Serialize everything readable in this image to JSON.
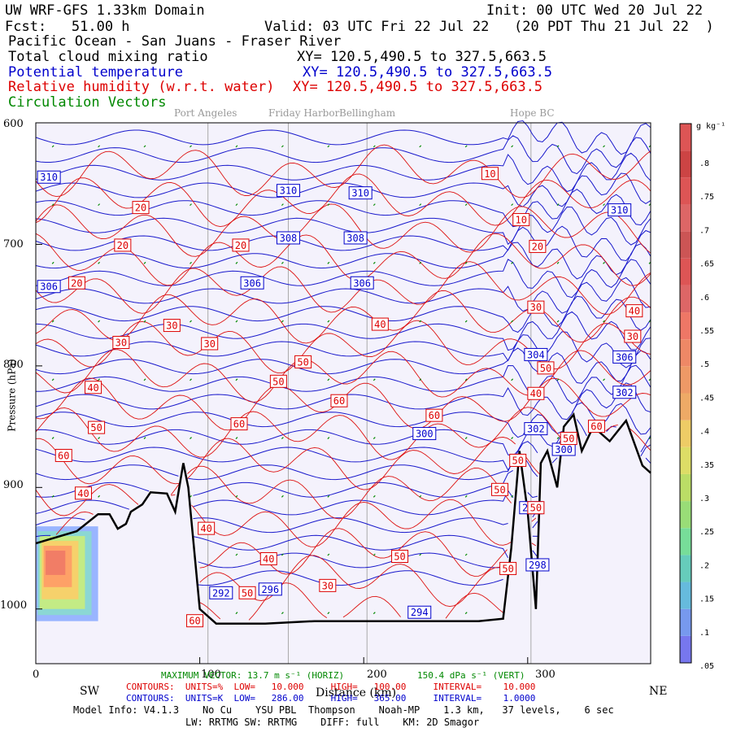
{
  "header": {
    "model": "UW WRF-GFS 1.33km Domain",
    "init": "Init: 00 UTC Wed 20 Jul 22",
    "fcst": "Fcst:   51.00 h",
    "valid": "Valid: 03 UTC Fri 22 Jul 22   (20 PDT Thu 21 Jul 22  )",
    "region": "Pacific Ocean - San Juans - Fraser River",
    "field1": "Total cloud mixing ratio",
    "xy1": "XY= 120.5,490.5 to 327.5,663.5",
    "field2": "Potential temperature",
    "xy2": "XY= 120.5,490.5 to 327.5,663.5",
    "field3": "Relative humidity (w.r.t. water)",
    "xy3": "XY= 120.5,490.5 to 327.5,663.5",
    "field4": "Circulation Vectors"
  },
  "places": [
    "Port Angeles",
    "Friday Harbor",
    "Bellingham",
    "Hope BC"
  ],
  "colors": {
    "theta": "#0000cc",
    "rh": "#dd0000",
    "vector": "#008800",
    "terrain": "#000000",
    "background": "#f4f2fc"
  },
  "chart_data": {
    "type": "cross-section",
    "xlabel": "Distance (km)",
    "ylabel": "Pressure (hPa)",
    "xlim": [
      0,
      375
    ],
    "ylim": [
      1045,
      600
    ],
    "x_ticks": [
      "0",
      "100",
      "200",
      "300"
    ],
    "y_ticks": [
      "600",
      "700",
      "800",
      "900",
      "1000"
    ],
    "left_dir": "SW",
    "right_dir": "NE",
    "place_x_km": {
      "Port Angeles": 105,
      "Friday Harbor": 154,
      "Bellingham": 202,
      "Hope BC": 302
    },
    "terrain": [
      [
        0,
        946
      ],
      [
        10,
        942
      ],
      [
        25,
        936
      ],
      [
        38,
        922
      ],
      [
        45,
        922
      ],
      [
        50,
        934
      ],
      [
        55,
        930
      ],
      [
        58,
        920
      ],
      [
        65,
        914
      ],
      [
        70,
        904
      ],
      [
        80,
        905
      ],
      [
        85,
        920
      ],
      [
        90,
        880
      ],
      [
        93,
        900
      ],
      [
        100,
        1000
      ],
      [
        110,
        1012
      ],
      [
        140,
        1012
      ],
      [
        170,
        1010
      ],
      [
        210,
        1010
      ],
      [
        250,
        1010
      ],
      [
        270,
        1010
      ],
      [
        285,
        1008
      ],
      [
        290,
        950
      ],
      [
        295,
        870
      ],
      [
        300,
        920
      ],
      [
        305,
        1000
      ],
      [
        308,
        880
      ],
      [
        312,
        870
      ],
      [
        318,
        900
      ],
      [
        322,
        850
      ],
      [
        328,
        840
      ],
      [
        333,
        870
      ],
      [
        340,
        850
      ],
      [
        350,
        862
      ],
      [
        360,
        845
      ],
      [
        370,
        882
      ],
      [
        375,
        888
      ]
    ],
    "theta_labels": [
      {
        "x": 8,
        "p": 645,
        "v": "310"
      },
      {
        "x": 154,
        "p": 656,
        "v": "310"
      },
      {
        "x": 198,
        "p": 658,
        "v": "310"
      },
      {
        "x": 356,
        "p": 672,
        "v": "310"
      },
      {
        "x": 154,
        "p": 695,
        "v": "308"
      },
      {
        "x": 195,
        "p": 695,
        "v": "308"
      },
      {
        "x": 8,
        "p": 735,
        "v": "306"
      },
      {
        "x": 132,
        "p": 732,
        "v": "306"
      },
      {
        "x": 199,
        "p": 732,
        "v": "306"
      },
      {
        "x": 305,
        "p": 791,
        "v": "304"
      },
      {
        "x": 359,
        "p": 793,
        "v": "306"
      },
      {
        "x": 359,
        "p": 822,
        "v": "302"
      },
      {
        "x": 237,
        "p": 856,
        "v": "300"
      },
      {
        "x": 305,
        "p": 852,
        "v": "302"
      },
      {
        "x": 322,
        "p": 869,
        "v": "300"
      },
      {
        "x": 302,
        "p": 917,
        "v": "298"
      },
      {
        "x": 306,
        "p": 964,
        "v": "298"
      },
      {
        "x": 113,
        "p": 987,
        "v": "292"
      },
      {
        "x": 143,
        "p": 984,
        "v": "296"
      },
      {
        "x": 234,
        "p": 1003,
        "v": "294"
      }
    ],
    "rh_labels": [
      {
        "x": 277,
        "p": 642,
        "v": "10"
      },
      {
        "x": 64,
        "p": 670,
        "v": "20"
      },
      {
        "x": 296,
        "p": 680,
        "v": "10"
      },
      {
        "x": 53,
        "p": 701,
        "v": "20"
      },
      {
        "x": 125,
        "p": 701,
        "v": "20"
      },
      {
        "x": 306,
        "p": 702,
        "v": "20"
      },
      {
        "x": 25,
        "p": 732,
        "v": "20"
      },
      {
        "x": 83,
        "p": 767,
        "v": "30"
      },
      {
        "x": 52,
        "p": 781,
        "v": "30"
      },
      {
        "x": 106,
        "p": 782,
        "v": "30"
      },
      {
        "x": 210,
        "p": 766,
        "v": "40"
      },
      {
        "x": 305,
        "p": 752,
        "v": "30"
      },
      {
        "x": 365,
        "p": 755,
        "v": "40"
      },
      {
        "x": 364,
        "p": 776,
        "v": "30"
      },
      {
        "x": 163,
        "p": 797,
        "v": "50"
      },
      {
        "x": 35,
        "p": 818,
        "v": "40"
      },
      {
        "x": 148,
        "p": 813,
        "v": "50"
      },
      {
        "x": 185,
        "p": 829,
        "v": "60"
      },
      {
        "x": 311,
        "p": 802,
        "v": "50"
      },
      {
        "x": 305,
        "p": 823,
        "v": "40"
      },
      {
        "x": 243,
        "p": 841,
        "v": "60"
      },
      {
        "x": 37,
        "p": 851,
        "v": "50"
      },
      {
        "x": 124,
        "p": 848,
        "v": "60"
      },
      {
        "x": 342,
        "p": 850,
        "v": "60"
      },
      {
        "x": 17,
        "p": 874,
        "v": "60"
      },
      {
        "x": 325,
        "p": 860,
        "v": "50"
      },
      {
        "x": 294,
        "p": 878,
        "v": "50"
      },
      {
        "x": 29,
        "p": 905,
        "v": "40"
      },
      {
        "x": 283,
        "p": 902,
        "v": "50"
      },
      {
        "x": 305,
        "p": 917,
        "v": "50"
      },
      {
        "x": 104,
        "p": 934,
        "v": "40"
      },
      {
        "x": 142,
        "p": 959,
        "v": "40"
      },
      {
        "x": 222,
        "p": 957,
        "v": "50"
      },
      {
        "x": 288,
        "p": 967,
        "v": "50"
      },
      {
        "x": 178,
        "p": 981,
        "v": "30"
      },
      {
        "x": 129,
        "p": 987,
        "v": "50"
      },
      {
        "x": 97,
        "p": 1010,
        "v": "60"
      }
    ],
    "colorbar": {
      "title": "g kg⁻¹",
      "labels": [
        ".8",
        ".75",
        ".7",
        ".65",
        ".6",
        ".55",
        ".5",
        ".45",
        ".4",
        ".35",
        ".3",
        ".25",
        ".2",
        ".15",
        ".1",
        ".05"
      ]
    }
  },
  "footer": {
    "max_vector": "MAXIMUM VECTOR: 13.7 m s⁻¹ (HORIZ)",
    "max_vector_vert": "150.4 dPa s⁻¹ (VERT)",
    "rh_contours": "CONTOURS:  UNITS=%  LOW=   10.000     HIGH=   100.00     INTERVAL=    10.000",
    "theta_contours": "CONTOURS:  UNITS=K  LOW=   286.00     HIGH=   365.00     INTERVAL=    1.0000",
    "model_info": "Model Info: V4.1.3    No Cu    YSU PBL  Thompson    Noah-MP    1.3 km,   37 levels,    6 sec",
    "model_info2": "LW: RRTMG SW: RRTMG    DIFF: full    KM: 2D Smagor"
  }
}
